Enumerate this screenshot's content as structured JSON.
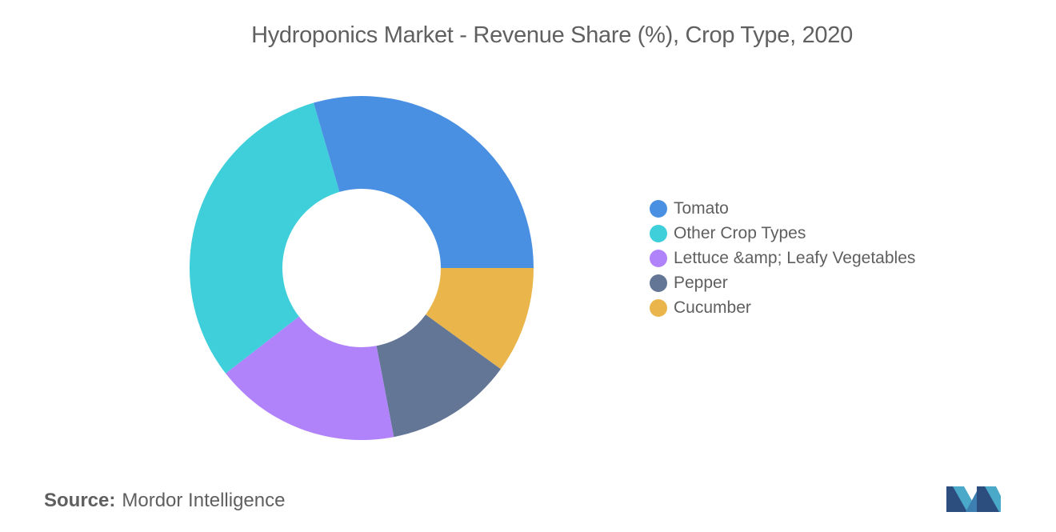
{
  "title": "Hydroponics Market - Revenue Share (%), Crop Type, 2020",
  "source": {
    "label": "Source:",
    "value": "Mordor Intelligence"
  },
  "colors": {
    "Tomato": "#4a90e2",
    "Other Crop Types": "#3ecfda",
    "Lettuce &amp; Leafy Vegetables": "#b083fa",
    "Pepper": "#647696",
    "Cucumber": "#eab54b"
  },
  "chart_data": {
    "type": "pie",
    "donut": true,
    "title": "Hydroponics Market - Revenue Share (%), Crop Type, 2020",
    "legend_position": "right",
    "categories": [
      "Tomato",
      "Other Crop Types",
      "Lettuce &amp; Leafy Vegetables",
      "Pepper",
      "Cucumber"
    ],
    "values": [
      29.5,
      31.0,
      17.5,
      12.0,
      10.0
    ]
  },
  "logo": {
    "name": "mordor-intelligence-logo"
  }
}
